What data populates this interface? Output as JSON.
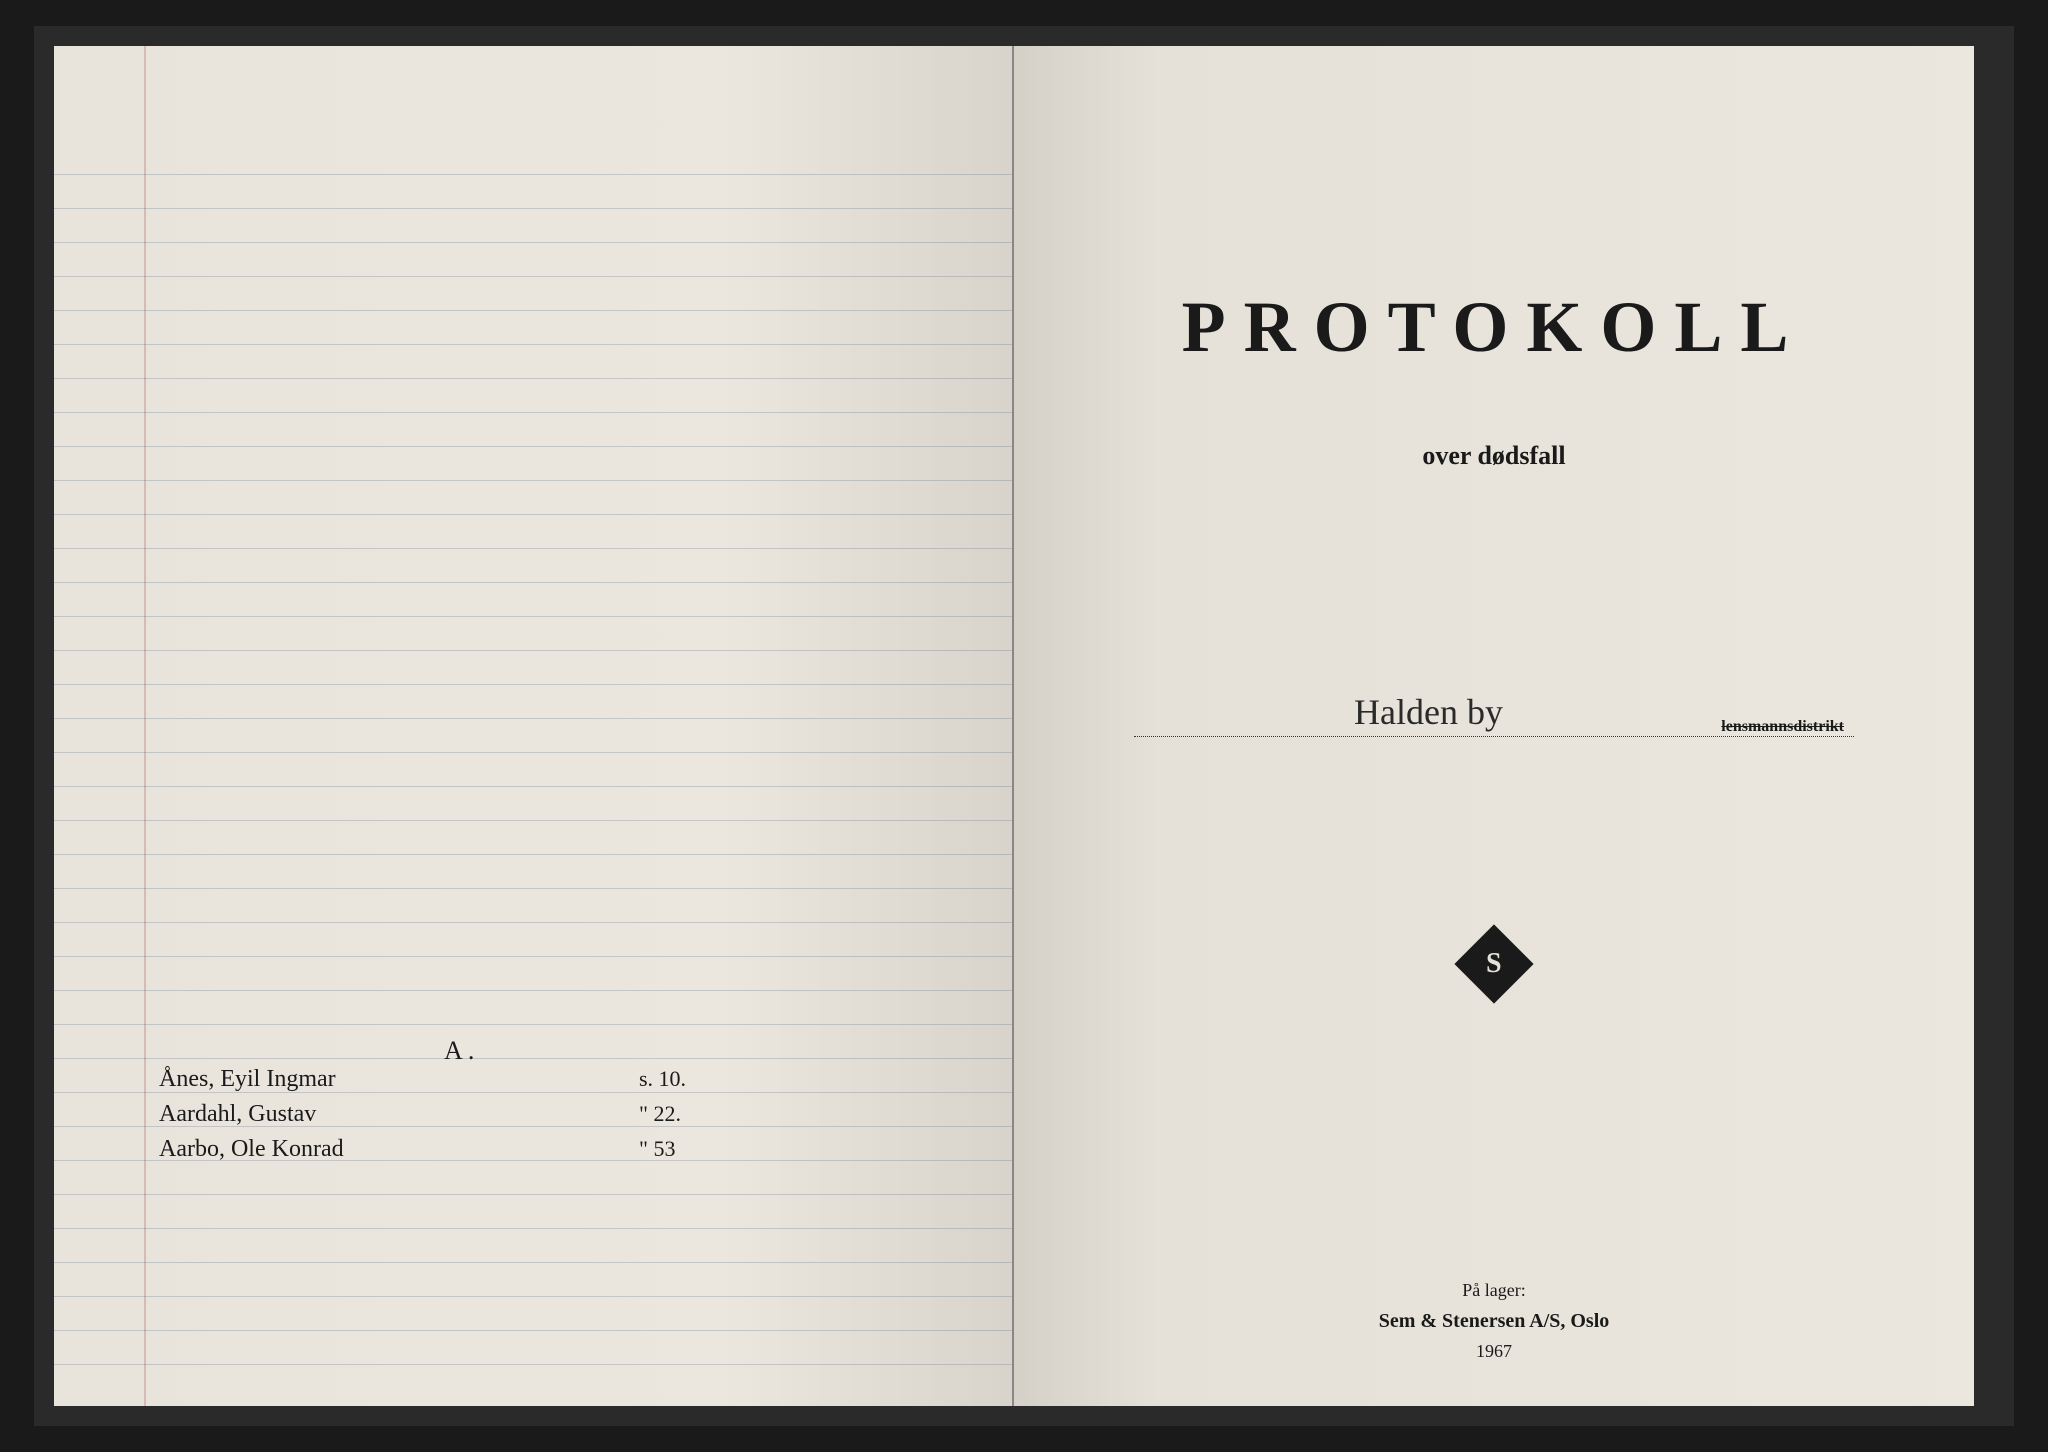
{
  "leftPage": {
    "sectionLetter": "A .",
    "entries": [
      {
        "name": "Ånes, Eyil Ingmar",
        "pageRef": "s. 10."
      },
      {
        "name": "Aardahl, Gustav",
        "pageRef": "\" 22."
      },
      {
        "name": "Aarbo, Ole Konrad",
        "pageRef": "\" 53"
      }
    ]
  },
  "rightPage": {
    "title": "PROTOKOLL",
    "subtitle": "over dødsfall",
    "districtHandwritten": "Halden by",
    "districtLabel": "lensmannsdistrikt",
    "logoText": "S",
    "publisher": {
      "label": "På lager:",
      "name": "Sem & Stenersen A/S, Oslo",
      "year": "1967"
    }
  },
  "styling": {
    "pageBackground": "#ebe7df",
    "darkBackground": "#1a1a1a",
    "lineColor": "rgba(80, 100, 130, 0.25)",
    "marginColor": "rgba(160, 60, 60, 0.25)",
    "textColor": "#1a1a1a",
    "titleFontSize": 72,
    "titleLetterSpacing": 18,
    "subtitleFontSize": 26,
    "handwrittenFontSize": 24,
    "lineHeight": 34
  }
}
